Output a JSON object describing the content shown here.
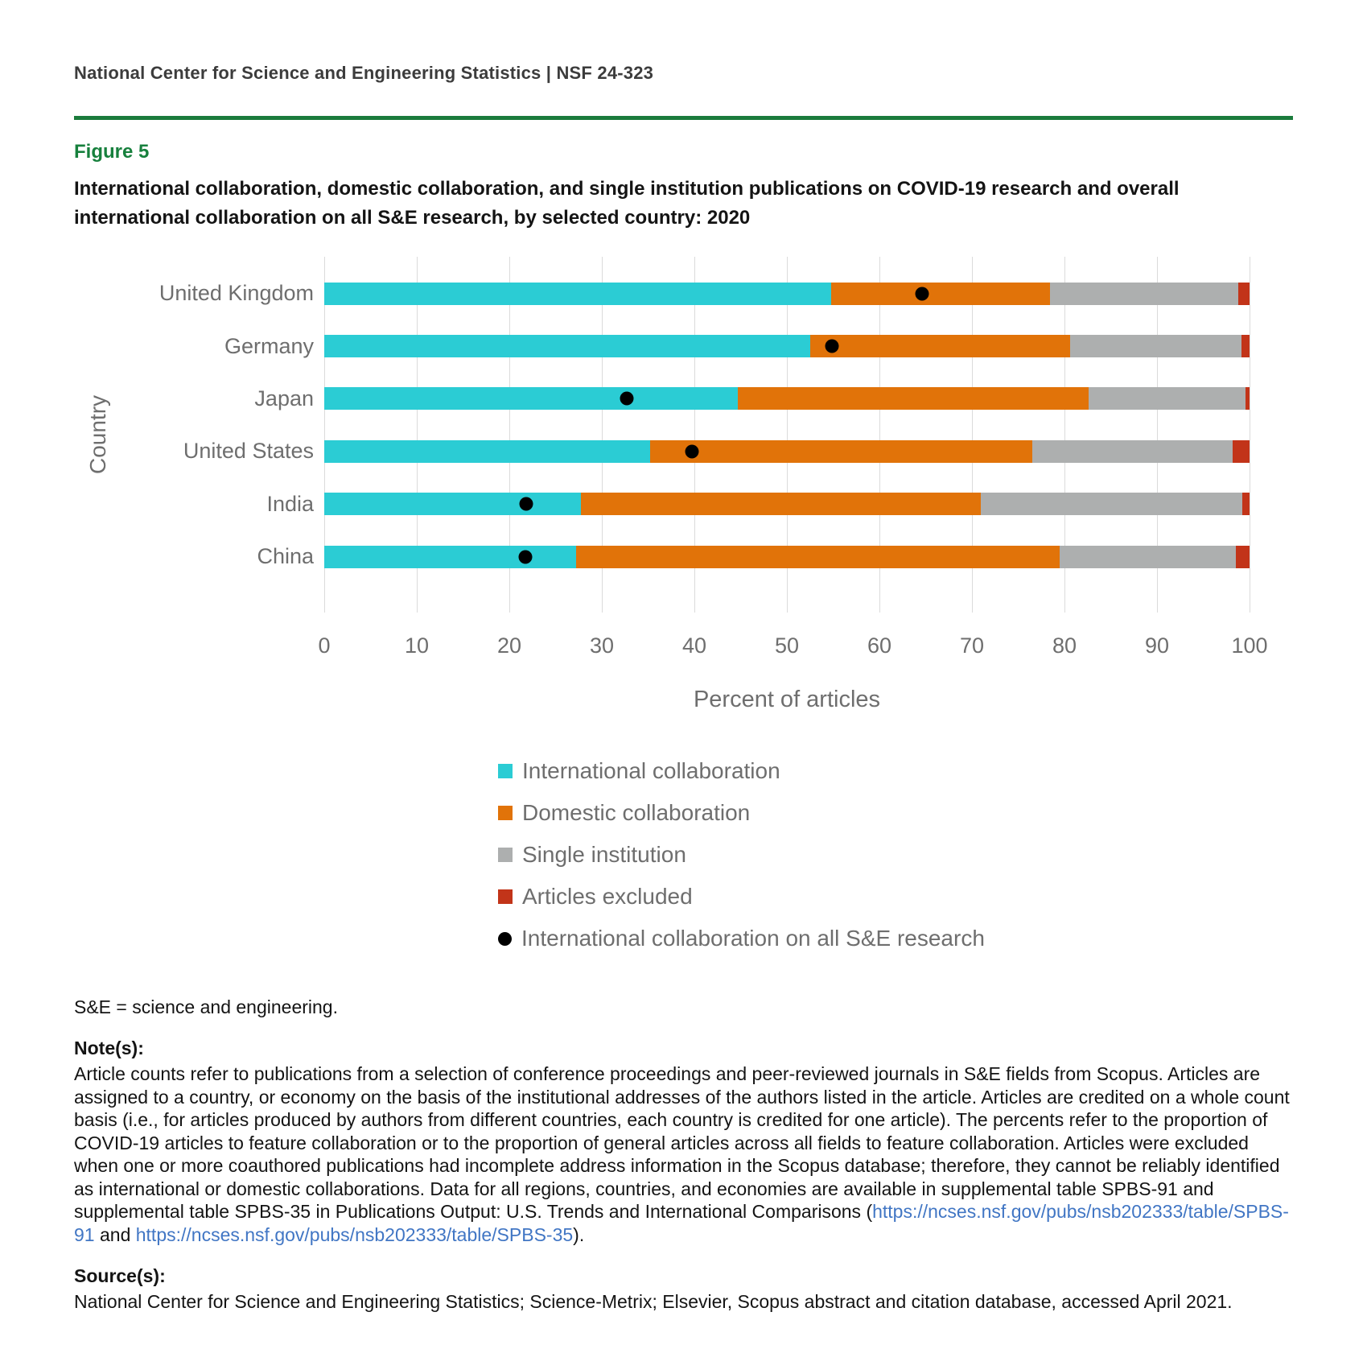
{
  "header": {
    "text": "National Center for Science and Engineering Statistics  |  NSF 24-323"
  },
  "figure": {
    "label": "Figure 5",
    "title": "International collaboration, domestic collaboration, and single institution publications on COVID-19 research and overall international collaboration on all S&E research, by selected country: 2020"
  },
  "chart_data": {
    "type": "bar",
    "orientation": "horizontal",
    "stacked": true,
    "grid": "vertical",
    "xlabel": "Percent of articles",
    "ylabel": "Country",
    "xlim": [
      0,
      100
    ],
    "x_ticks": [
      0,
      10,
      20,
      30,
      40,
      50,
      60,
      70,
      80,
      90,
      100
    ],
    "categories": [
      "United Kingdom",
      "Germany",
      "Japan",
      "United States",
      "India",
      "China"
    ],
    "series": [
      {
        "name": "International collaboration",
        "color": "#2bccd4",
        "values": [
          54.8,
          52.5,
          44.7,
          35.2,
          27.7,
          27.2
        ]
      },
      {
        "name": "Domestic collaboration",
        "color": "#e17309",
        "values": [
          23.6,
          28.1,
          37.9,
          41.3,
          43.3,
          52.3
        ]
      },
      {
        "name": "Single institution",
        "color": "#adafaf",
        "values": [
          20.4,
          18.5,
          17.0,
          21.7,
          28.2,
          19.0
        ]
      },
      {
        "name": "Articles excluded",
        "color": "#c23419",
        "values": [
          1.2,
          0.9,
          0.4,
          1.8,
          0.8,
          1.5
        ]
      }
    ],
    "point_series": {
      "name": "International collaboration on all S&E research",
      "color": "#000000",
      "values": [
        64.6,
        54.9,
        32.7,
        39.7,
        21.8,
        21.7
      ]
    },
    "legend_position": "bottom"
  },
  "abbr_note": "S&E = science and engineering.",
  "notes": {
    "heading": "Note(s):",
    "part1": "Article counts refer to publications from a selection of conference proceedings and peer-reviewed journals in S&E fields from Scopus. Articles are assigned to a country, or economy on the basis of the institutional addresses of the authors listed in the article. Articles are credited on a whole count basis (i.e., for articles produced by authors from different countries, each country is credited for one article). The percents refer to the proportion of COVID-19 articles to feature collaboration or to the proportion of general articles across all fields to feature collaboration. Articles were excluded when one or more coauthored publications had incomplete address information in the Scopus database; therefore, they cannot be reliably identified as international or domestic collaborations. Data for all regions, countries, and economies are available in supplemental table SPBS-91 and supplemental table SPBS-35 in Publications Output: U.S. Trends and International Comparisons (",
    "link1": "https://ncses.nsf.gov/pubs/nsb202333/table/SPBS-91",
    "part2": " and ",
    "link2": "https://ncses.nsf.gov/pubs/nsb202333/table/SPBS-35",
    "part3": ")."
  },
  "source": {
    "heading": "Source(s):",
    "text": "National Center for Science and Engineering Statistics; Science-Metrix; Elsevier, Scopus abstract and citation database, accessed April 2021."
  }
}
